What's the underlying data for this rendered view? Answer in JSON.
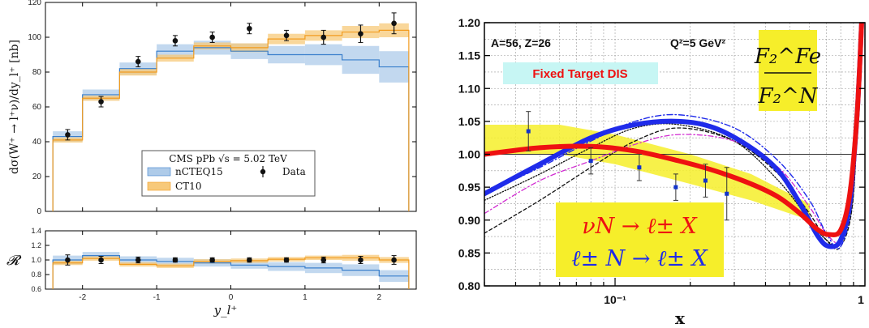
{
  "chart_data": [
    {
      "type": "line",
      "panel": "main",
      "x_edges": [
        -2.4,
        -2.0,
        -1.5,
        -1.0,
        -0.5,
        0.0,
        0.5,
        1.0,
        1.5,
        2.0,
        2.4
      ],
      "xlim": [
        -2.5,
        2.5
      ],
      "ylim": [
        0,
        120
      ],
      "xticks": [
        "-2",
        "-1",
        "0",
        "1",
        "2"
      ],
      "yticks": [
        "0",
        "20",
        "40",
        "60",
        "80",
        "100",
        "120"
      ],
      "ylabel": "dσ(W⁺ → l⁺ν)/dy_l⁺ [nb]",
      "legend_title": "CMS pPb √s = 5.02 TeV",
      "legend_position": "lower center",
      "grid": false,
      "series": [
        {
          "name": "nCTEQ15",
          "kind": "band",
          "color": "#aecbe9",
          "line_color": "#3a7fcc",
          "values": [
            43,
            67,
            82,
            92,
            94,
            92,
            90,
            90,
            87,
            83
          ],
          "err": [
            3,
            3,
            3.5,
            4,
            4,
            4.5,
            5,
            6,
            8,
            9
          ]
        },
        {
          "name": "CT10",
          "kind": "band",
          "color": "#f7c97a",
          "line_color": "#f29c1f",
          "values": [
            41,
            65,
            80,
            88,
            95,
            94,
            99,
            101,
            103,
            104
          ],
          "err": [
            1.5,
            1.5,
            2,
            2,
            2,
            2.5,
            3,
            3,
            3.5,
            4
          ]
        },
        {
          "name": "Data",
          "kind": "points",
          "color": "#111111",
          "x": [
            -2.2,
            -1.75,
            -1.25,
            -0.75,
            -0.25,
            0.25,
            0.75,
            1.25,
            1.75,
            2.2
          ],
          "values": [
            44,
            63,
            86,
            98,
            100,
            105,
            101,
            100,
            102,
            108
          ],
          "err": [
            3,
            3,
            3,
            3,
            3,
            3,
            3,
            4,
            5,
            6
          ]
        }
      ]
    },
    {
      "type": "line",
      "panel": "ratio",
      "ylim": [
        0.6,
        1.4
      ],
      "yticks": [
        "0.6",
        "0.8",
        "1.0",
        "1.2",
        "1.4"
      ],
      "xticks": [
        "-2",
        "-1",
        "0",
        "1",
        "2"
      ],
      "xlabel": "y_l⁺",
      "ylabel": "𝓡",
      "series": [
        {
          "name": "nCTEQ15",
          "values": [
            1.0,
            1.06,
            1.0,
            0.98,
            0.96,
            0.93,
            0.91,
            0.89,
            0.86,
            0.78
          ],
          "err": [
            0.06,
            0.05,
            0.05,
            0.05,
            0.05,
            0.05,
            0.06,
            0.07,
            0.08,
            0.08
          ]
        },
        {
          "name": "CT10",
          "values": [
            0.96,
            1.02,
            0.94,
            0.92,
            0.98,
            0.99,
            1.01,
            1.03,
            1.03,
            1.0
          ],
          "err": [
            0.03,
            0.03,
            0.03,
            0.03,
            0.03,
            0.03,
            0.03,
            0.03,
            0.04,
            0.04
          ]
        },
        {
          "name": "Data",
          "x": [
            -2.2,
            -1.75,
            -1.25,
            -0.75,
            -0.25,
            0.25,
            0.75,
            1.25,
            1.75,
            2.2
          ],
          "values": [
            1.0,
            1.0,
            1.0,
            1.0,
            1.0,
            1.0,
            1.0,
            1.0,
            1.0,
            1.0
          ],
          "err": [
            0.07,
            0.05,
            0.04,
            0.03,
            0.03,
            0.03,
            0.03,
            0.04,
            0.05,
            0.06
          ]
        }
      ]
    },
    {
      "type": "line",
      "panel": "right",
      "xscale": "log",
      "xlim": [
        0.03,
        1.0
      ],
      "ylim": [
        0.8,
        1.2
      ],
      "xlabel": "x",
      "yticks": [
        "0.80",
        "0.85",
        "0.90",
        "0.95",
        "1.00",
        "1.05",
        "1.10",
        "1.15",
        "1.20"
      ],
      "xticks": [
        "10⁻¹",
        "1"
      ],
      "grid": true,
      "annotations": {
        "nuclei": "A=56, Z=26",
        "q2": "Q²=5 GeV²",
        "label_box": "Fixed Target DIS",
        "ratio_num": "F₂^Fe",
        "ratio_den": "F₂^N",
        "process1": "νN → ℓ± X",
        "process2": "ℓ± N → ℓ± X"
      },
      "series": [
        {
          "name": "blue",
          "color": "#1f2bea",
          "x": [
            0.03,
            0.05,
            0.08,
            0.12,
            0.18,
            0.25,
            0.35,
            0.45,
            0.55,
            0.65,
            0.72,
            0.8,
            0.87,
            0.93,
            0.97
          ],
          "y": [
            0.94,
            0.985,
            1.025,
            1.045,
            1.05,
            1.04,
            1.01,
            0.975,
            0.925,
            0.875,
            0.86,
            0.87,
            0.93,
            1.06,
            1.2
          ]
        },
        {
          "name": "red",
          "color": "#ee1111",
          "x": [
            0.03,
            0.05,
            0.08,
            0.12,
            0.18,
            0.25,
            0.35,
            0.45,
            0.55,
            0.65,
            0.72,
            0.8,
            0.87,
            0.93,
            0.97
          ],
          "y": [
            1.0,
            1.01,
            1.012,
            1.005,
            0.99,
            0.975,
            0.955,
            0.935,
            0.91,
            0.885,
            0.878,
            0.885,
            0.94,
            1.06,
            1.2
          ]
        },
        {
          "name": "yellow-band",
          "color": "#f6ee2a",
          "x": [
            0.03,
            0.06,
            0.1,
            0.2,
            0.35,
            0.5,
            0.6
          ],
          "y_lo": [
            1.0,
            1.0,
            0.985,
            0.955,
            0.93,
            0.91,
            0.9
          ],
          "y_hi": [
            1.045,
            1.045,
            1.03,
            1.0,
            0.97,
            0.94,
            0.925
          ]
        },
        {
          "name": "blue-dashdot",
          "color": "#1f2bea",
          "x": [
            0.03,
            0.05,
            0.08,
            0.12,
            0.18,
            0.3,
            0.45,
            0.6,
            0.7,
            0.8,
            0.9,
            0.96
          ],
          "y": [
            0.94,
            0.98,
            1.02,
            1.05,
            1.06,
            1.04,
            0.99,
            0.93,
            0.88,
            0.86,
            0.95,
            1.2
          ]
        },
        {
          "name": "magenta-dashdot",
          "color": "#d12ad1",
          "x": [
            0.03,
            0.05,
            0.08,
            0.12,
            0.18,
            0.3,
            0.45,
            0.6,
            0.7,
            0.8,
            0.9,
            0.96
          ],
          "y": [
            0.91,
            0.96,
            0.99,
            1.015,
            1.03,
            1.02,
            0.98,
            0.92,
            0.88,
            0.87,
            0.95,
            1.2
          ]
        },
        {
          "name": "black-dashed",
          "color": "#111111",
          "x": [
            0.03,
            0.05,
            0.08,
            0.12,
            0.18,
            0.3,
            0.45,
            0.6,
            0.7,
            0.8,
            0.9,
            0.96
          ],
          "y": [
            0.88,
            0.93,
            0.98,
            1.02,
            1.04,
            1.02,
            0.97,
            0.91,
            0.87,
            0.86,
            0.94,
            1.2
          ]
        },
        {
          "name": "black-dotted",
          "color": "#111111",
          "x": [
            0.03,
            0.05,
            0.08,
            0.12,
            0.18,
            0.3,
            0.45,
            0.6,
            0.7,
            0.8,
            0.9,
            0.96
          ],
          "y": [
            0.93,
            0.97,
            1.01,
            1.04,
            1.045,
            1.02,
            0.96,
            0.9,
            0.87,
            0.865,
            0.94,
            1.2
          ]
        },
        {
          "name": "data",
          "color": "#1133cc",
          "kind": "points",
          "x": [
            0.045,
            0.08,
            0.125,
            0.175,
            0.23,
            0.28
          ],
          "y": [
            1.035,
            0.99,
            0.98,
            0.95,
            0.96,
            0.94
          ],
          "err": [
            0.03,
            0.02,
            0.02,
            0.02,
            0.025,
            0.04
          ]
        }
      ]
    }
  ]
}
